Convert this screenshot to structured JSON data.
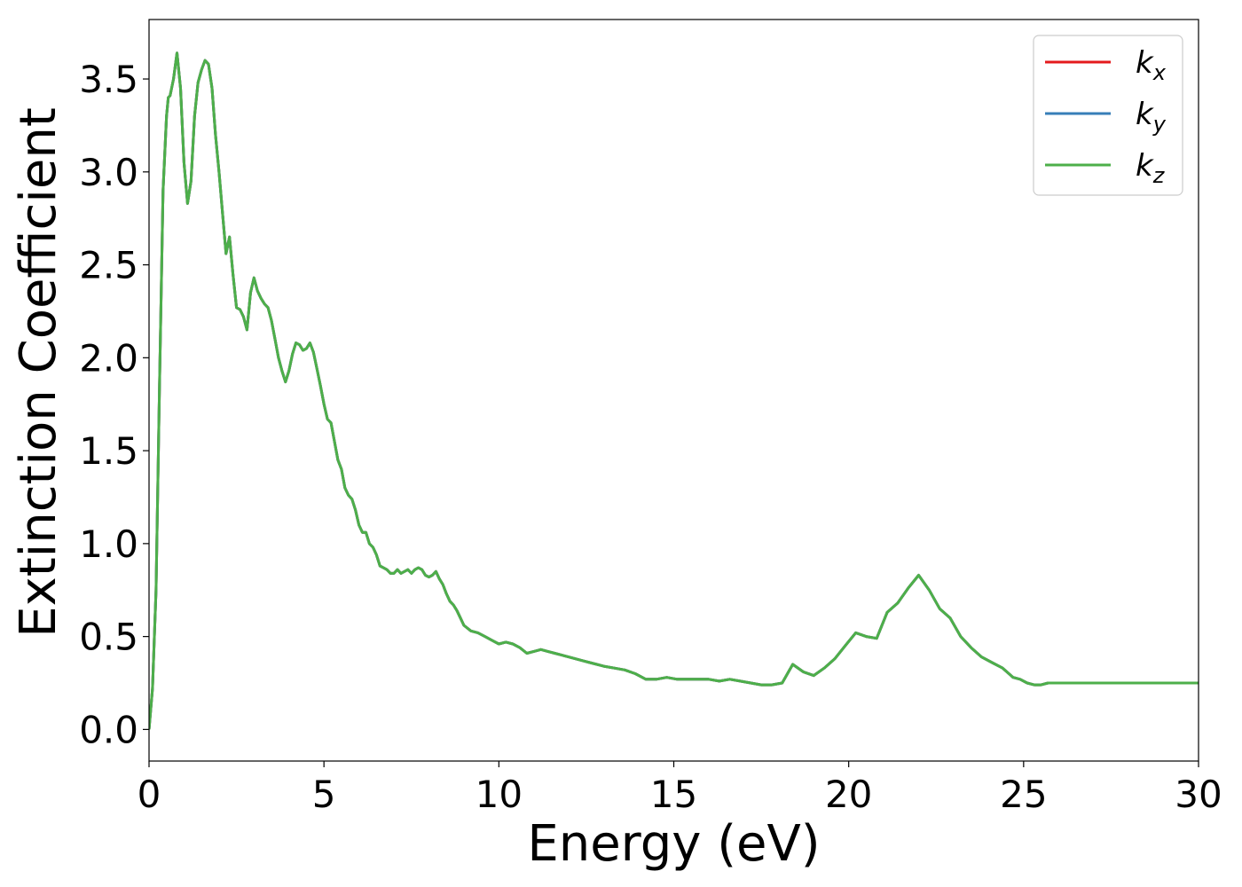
{
  "chart_data": {
    "type": "line",
    "title": "",
    "xlabel": "Energy (eV)",
    "ylabel": "Extinction Coefficient",
    "xlim": [
      0,
      30
    ],
    "ylim": [
      -0.17,
      3.82
    ],
    "xticks": [
      0,
      5,
      10,
      15,
      20,
      25,
      30
    ],
    "xtick_labels": [
      "0",
      "5",
      "10",
      "15",
      "20",
      "25",
      "30"
    ],
    "yticks": [
      0.0,
      0.5,
      1.0,
      1.5,
      2.0,
      2.5,
      3.0,
      3.5
    ],
    "ytick_labels": [
      "0.0",
      "0.5",
      "1.0",
      "1.5",
      "2.0",
      "2.5",
      "3.0",
      "3.5"
    ],
    "grid": false,
    "legend_position": "top-right",
    "x": [
      0,
      0.1,
      0.2,
      0.3,
      0.4,
      0.5,
      0.55,
      0.6,
      0.7,
      0.8,
      0.9,
      1.0,
      1.1,
      1.2,
      1.3,
      1.4,
      1.5,
      1.6,
      1.7,
      1.8,
      1.9,
      2.0,
      2.1,
      2.2,
      2.3,
      2.4,
      2.5,
      2.6,
      2.7,
      2.8,
      2.9,
      3.0,
      3.1,
      3.2,
      3.3,
      3.4,
      3.5,
      3.6,
      3.7,
      3.8,
      3.9,
      4.0,
      4.1,
      4.2,
      4.3,
      4.4,
      4.5,
      4.6,
      4.7,
      4.8,
      4.9,
      5.0,
      5.1,
      5.2,
      5.3,
      5.4,
      5.5,
      5.6,
      5.7,
      5.8,
      5.9,
      6.0,
      6.1,
      6.2,
      6.3,
      6.4,
      6.5,
      6.6,
      6.7,
      6.8,
      6.9,
      7.0,
      7.1,
      7.2,
      7.3,
      7.4,
      7.5,
      7.6,
      7.7,
      7.8,
      7.9,
      8.0,
      8.1,
      8.2,
      8.3,
      8.4,
      8.5,
      8.6,
      8.7,
      8.8,
      8.9,
      9.0,
      9.2,
      9.4,
      9.6,
      9.8,
      10.0,
      10.2,
      10.4,
      10.6,
      10.8,
      11.0,
      11.2,
      11.4,
      11.6,
      11.8,
      12.0,
      12.2,
      12.4,
      12.6,
      12.8,
      13.0,
      13.3,
      13.6,
      13.9,
      14.2,
      14.5,
      14.8,
      15.1,
      15.4,
      15.7,
      16.0,
      16.3,
      16.6,
      16.9,
      17.2,
      17.5,
      17.8,
      18.1,
      18.4,
      18.7,
      19.0,
      19.3,
      19.6,
      19.9,
      20.2,
      20.5,
      20.8,
      21.1,
      21.4,
      21.7,
      22.0,
      22.3,
      22.6,
      22.9,
      23.2,
      23.5,
      23.8,
      24.1,
      24.4,
      24.7,
      24.9,
      25.1,
      25.3,
      25.5,
      25.7,
      25.9,
      26.1,
      26.3,
      26.5,
      26.7,
      26.9,
      27.1,
      27.3,
      27.5,
      27.7,
      27.9,
      28.1,
      28.3,
      28.5,
      28.7,
      28.9,
      29.1,
      29.3,
      29.5,
      29.7,
      29.9,
      30.0
    ],
    "series": [
      {
        "name": "k_x",
        "label_main": "k",
        "label_sub": "x",
        "color": "#e41a1c"
      },
      {
        "name": "k_y",
        "label_main": "k",
        "label_sub": "y",
        "color": "#377eb8"
      },
      {
        "name": "k_z",
        "label_main": "k",
        "label_sub": "z",
        "color": "#4daf4a"
      }
    ],
    "shared_values": [
      0.0,
      0.22,
      0.75,
      1.85,
      2.9,
      3.3,
      3.4,
      3.41,
      3.5,
      3.64,
      3.45,
      3.05,
      2.83,
      2.95,
      3.3,
      3.48,
      3.55,
      3.6,
      3.58,
      3.45,
      3.2,
      3.0,
      2.78,
      2.56,
      2.65,
      2.45,
      2.27,
      2.26,
      2.22,
      2.15,
      2.35,
      2.43,
      2.36,
      2.32,
      2.29,
      2.27,
      2.2,
      2.1,
      2.0,
      1.93,
      1.87,
      1.93,
      2.02,
      2.08,
      2.07,
      2.04,
      2.05,
      2.08,
      2.03,
      1.94,
      1.85,
      1.75,
      1.67,
      1.65,
      1.55,
      1.45,
      1.4,
      1.3,
      1.26,
      1.24,
      1.18,
      1.1,
      1.06,
      1.06,
      1.0,
      0.98,
      0.94,
      0.88,
      0.87,
      0.86,
      0.84,
      0.84,
      0.86,
      0.84,
      0.85,
      0.86,
      0.84,
      0.86,
      0.87,
      0.86,
      0.83,
      0.82,
      0.83,
      0.85,
      0.81,
      0.78,
      0.73,
      0.69,
      0.67,
      0.64,
      0.6,
      0.56,
      0.53,
      0.52,
      0.5,
      0.48,
      0.46,
      0.47,
      0.46,
      0.44,
      0.41,
      0.42,
      0.43,
      0.42,
      0.41,
      0.4,
      0.39,
      0.38,
      0.37,
      0.36,
      0.35,
      0.34,
      0.33,
      0.32,
      0.3,
      0.27,
      0.27,
      0.28,
      0.27,
      0.27,
      0.27,
      0.27,
      0.26,
      0.27,
      0.26,
      0.25,
      0.24,
      0.24,
      0.25,
      0.35,
      0.31,
      0.29,
      0.33,
      0.38,
      0.45,
      0.52,
      0.5,
      0.49,
      0.63,
      0.68,
      0.76,
      0.83,
      0.75,
      0.65,
      0.6,
      0.5,
      0.44,
      0.39,
      0.36,
      0.33,
      0.28,
      0.27,
      0.25,
      0.24,
      0.24,
      0.25,
      0.25,
      0.25,
      0.25,
      0.25,
      0.25,
      0.25,
      0.25,
      0.25,
      0.25,
      0.25,
      0.25,
      0.25,
      0.25,
      0.25,
      0.25,
      0.25,
      0.25,
      0.25,
      0.25,
      0.25,
      0.25,
      0.25,
      0.25,
      0.25
    ]
  }
}
